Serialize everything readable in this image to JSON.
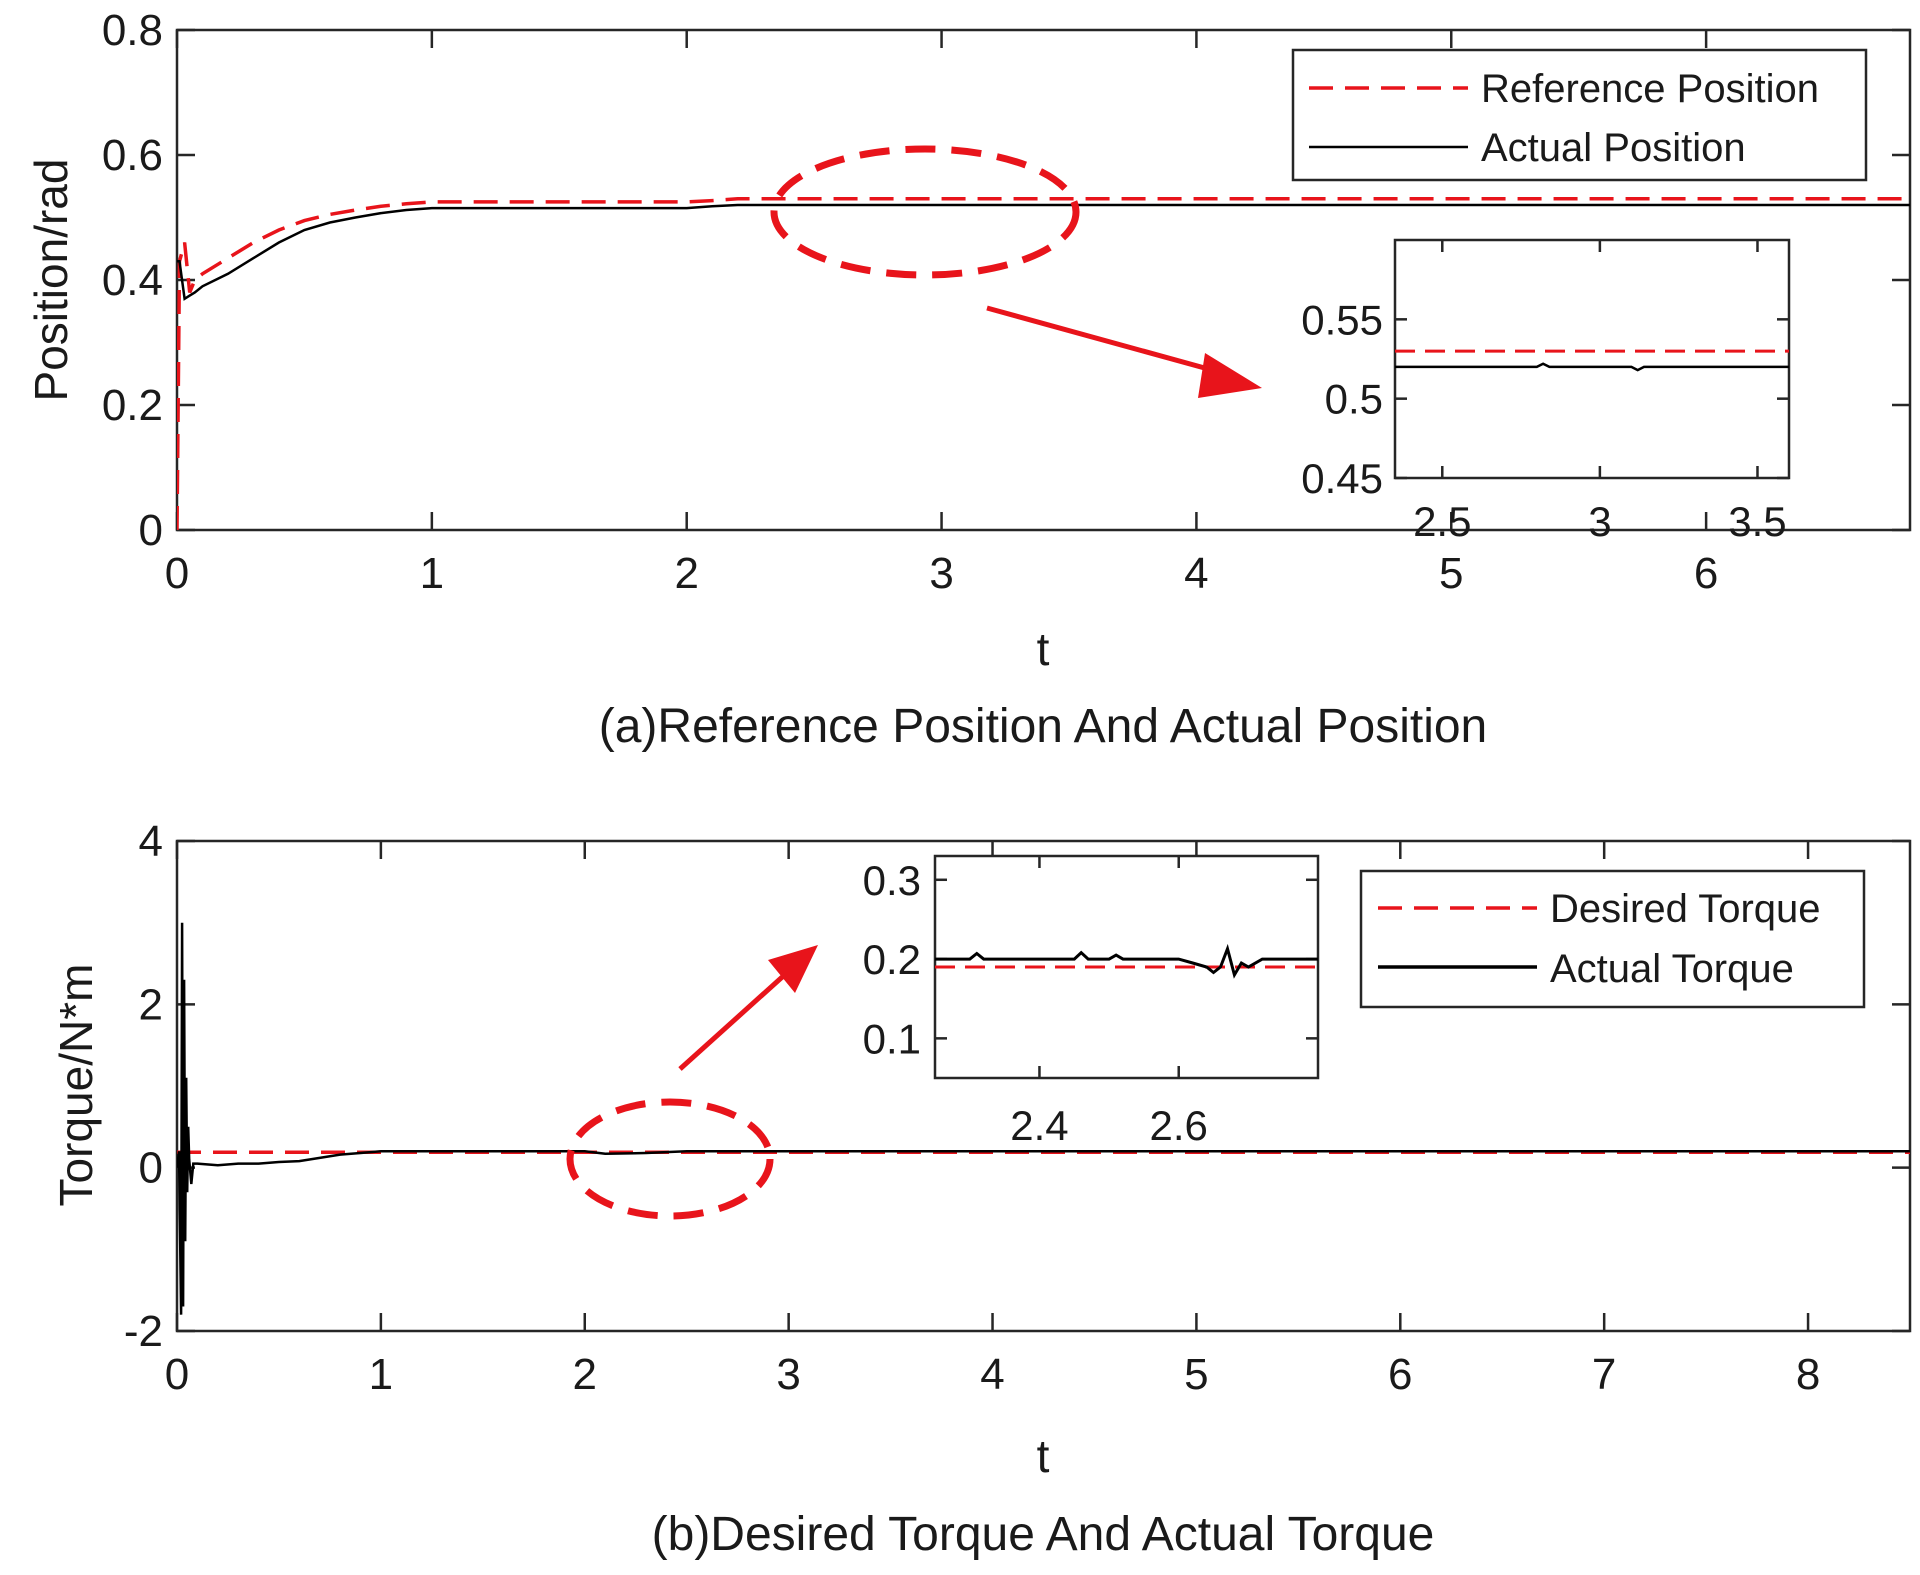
{
  "chart_data": [
    {
      "type": "line",
      "caption": "(a)Reference Position And Actual Position",
      "xlabel": "t",
      "ylabel": "Position/rad",
      "xlim": [
        0,
        6.8
      ],
      "ylim": [
        0,
        0.8
      ],
      "xticks": [
        0,
        1,
        2,
        3,
        4,
        5,
        6
      ],
      "yticks": [
        0,
        0.2,
        0.4,
        0.6,
        0.8
      ],
      "legend_position": "top-right",
      "series": [
        {
          "name": "Reference Position",
          "style": "dashed",
          "color": "#e8141b",
          "x": [
            0,
            0.01,
            0.03,
            0.05,
            0.07,
            0.1,
            0.2,
            0.3,
            0.4,
            0.5,
            0.6,
            0.7,
            0.8,
            0.9,
            1.0,
            1.5,
            2.0,
            2.1,
            2.2,
            2.3,
            2.5,
            3.0,
            4.0,
            5.0,
            6.0,
            6.8
          ],
          "y": [
            0,
            0.43,
            0.46,
            0.38,
            0.4,
            0.41,
            0.435,
            0.46,
            0.48,
            0.495,
            0.505,
            0.512,
            0.518,
            0.522,
            0.525,
            0.525,
            0.525,
            0.527,
            0.53,
            0.53,
            0.53,
            0.53,
            0.53,
            0.53,
            0.53,
            0.53
          ]
        },
        {
          "name": "Actual Position",
          "style": "solid",
          "color": "#000000",
          "x": [
            0,
            0.01,
            0.03,
            0.05,
            0.07,
            0.1,
            0.2,
            0.3,
            0.4,
            0.5,
            0.6,
            0.7,
            0.8,
            0.9,
            1.0,
            1.5,
            2.0,
            2.1,
            2.2,
            2.3,
            2.5,
            3.0,
            4.0,
            5.0,
            6.0,
            6.8
          ],
          "y": [
            0.43,
            0.43,
            0.37,
            0.375,
            0.38,
            0.39,
            0.41,
            0.435,
            0.46,
            0.48,
            0.492,
            0.5,
            0.507,
            0.512,
            0.515,
            0.515,
            0.515,
            0.518,
            0.52,
            0.52,
            0.52,
            0.52,
            0.52,
            0.52,
            0.52,
            0.52
          ]
        }
      ],
      "inset": {
        "xlim": [
          2.35,
          3.6
        ],
        "ylim": [
          0.45,
          0.6
        ],
        "xticks": [
          2.5,
          3,
          3.5
        ],
        "xtick_labels": [
          "2.5",
          "3",
          "3.5"
        ],
        "yticks": [
          0.45,
          0.5,
          0.55
        ],
        "ytick_labels": [
          "0.45",
          "0.5",
          "0.55"
        ],
        "reference_y": 0.53,
        "actual_y": 0.52
      }
    },
    {
      "type": "line",
      "caption": "(b)Desired Torque And Actual Torque",
      "xlabel": "t",
      "ylabel": "Torque/N*m",
      "xlim": [
        0,
        8.5
      ],
      "ylim": [
        -2,
        4
      ],
      "xticks": [
        0,
        1,
        2,
        3,
        4,
        5,
        6,
        7,
        8
      ],
      "yticks": [
        -2,
        0,
        2,
        4
      ],
      "legend_position": "top-right",
      "series": [
        {
          "name": "Desired Torque",
          "style": "dashed",
          "color": "#e8141b",
          "x": [
            0,
            8.5
          ],
          "y": [
            0.19,
            0.19
          ]
        },
        {
          "name": "Actual Torque",
          "style": "solid",
          "color": "#000000",
          "x": [
            0,
            0.01,
            0.02,
            0.025,
            0.03,
            0.035,
            0.04,
            0.045,
            0.05,
            0.055,
            0.06,
            0.07,
            0.08,
            0.1,
            0.2,
            0.3,
            0.4,
            0.5,
            0.6,
            0.7,
            0.8,
            0.9,
            1.0,
            2.0,
            2.1,
            2.3,
            2.5,
            3.0,
            4.0,
            5.0,
            6.0,
            7.0,
            8.0,
            8.5
          ],
          "y": [
            0,
            0.2,
            -1.8,
            3.0,
            -1.7,
            2.3,
            -0.9,
            1.1,
            -0.3,
            0.5,
            0.1,
            -0.2,
            0.05,
            0.05,
            0.03,
            0.05,
            0.05,
            0.07,
            0.08,
            0.12,
            0.16,
            0.18,
            0.2,
            0.2,
            0.17,
            0.18,
            0.2,
            0.2,
            0.2,
            0.2,
            0.2,
            0.2,
            0.2,
            0.2
          ]
        }
      ],
      "inset": {
        "xlim": [
          2.25,
          2.8
        ],
        "ylim": [
          0.05,
          0.33
        ],
        "xticks": [
          2.4,
          2.6
        ],
        "xtick_labels": [
          "2.4",
          "2.6"
        ],
        "yticks": [
          0.1,
          0.2,
          0.3
        ],
        "ytick_labels": [
          "0.1",
          "0.2",
          "0.3"
        ],
        "reference_y": 0.19,
        "actual_x": [
          2.25,
          2.3,
          2.31,
          2.32,
          2.35,
          2.45,
          2.46,
          2.47,
          2.5,
          2.51,
          2.52,
          2.6,
          2.62,
          2.64,
          2.65,
          2.66,
          2.67,
          2.68,
          2.69,
          2.7,
          2.72,
          2.8
        ],
        "actual_y": [
          0.2,
          0.2,
          0.207,
          0.2,
          0.2,
          0.2,
          0.208,
          0.2,
          0.2,
          0.205,
          0.2,
          0.2,
          0.195,
          0.19,
          0.183,
          0.19,
          0.213,
          0.18,
          0.195,
          0.19,
          0.2,
          0.2
        ]
      }
    }
  ]
}
